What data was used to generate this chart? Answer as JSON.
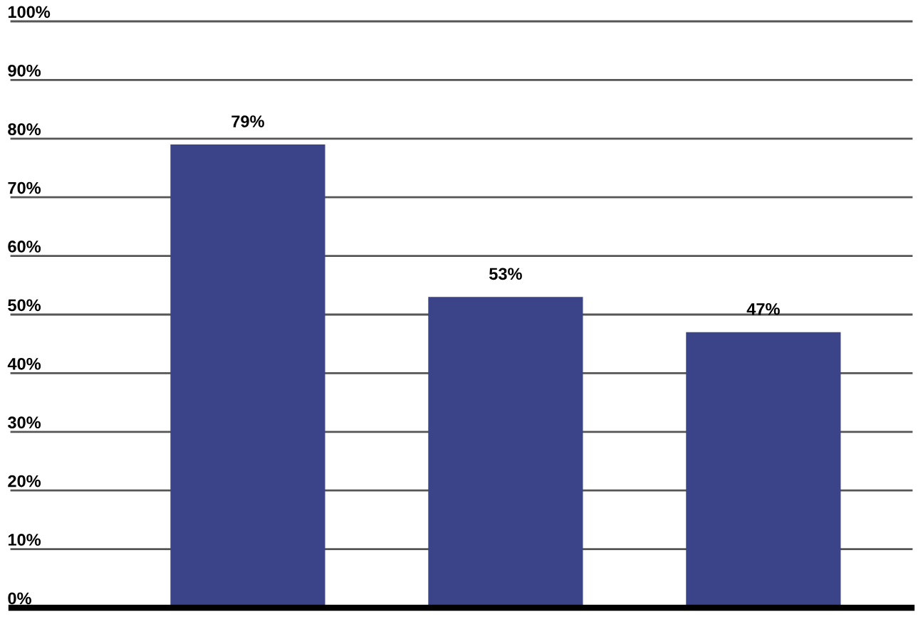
{
  "chart_data": {
    "type": "bar",
    "categories": [
      null,
      null,
      null
    ],
    "values": [
      79,
      53,
      47
    ],
    "color": "#3b4389",
    "value_labels": [
      "79%",
      "53%",
      "47%"
    ],
    "ylim": [
      0,
      100
    ],
    "yticks": [
      {
        "value": 0,
        "label": "0%"
      },
      {
        "value": 10,
        "label": "10%"
      },
      {
        "value": 20,
        "label": "20%"
      },
      {
        "value": 30,
        "label": "30%"
      },
      {
        "value": 40,
        "label": "40%"
      },
      {
        "value": 50,
        "label": "50%"
      },
      {
        "value": 60,
        "label": "60%"
      },
      {
        "value": 70,
        "label": "70%"
      },
      {
        "value": 80,
        "label": "80%"
      },
      {
        "value": 90,
        "label": "90%"
      },
      {
        "value": 100,
        "label": "100%"
      }
    ],
    "grid": "y",
    "tick_labels": "y"
  }
}
